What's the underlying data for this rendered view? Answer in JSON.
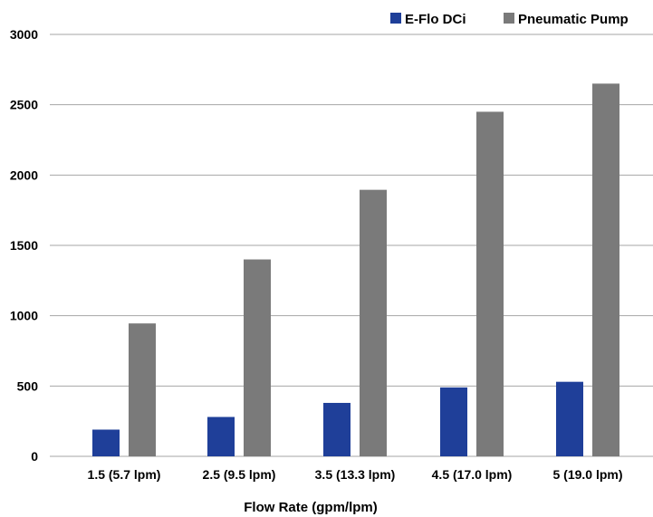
{
  "chart_data": {
    "type": "bar",
    "categories": [
      "1.5 (5.7 lpm)",
      "2.5 (9.5 lpm)",
      "3.5 (13.3 lpm)",
      "4.5 (17.0 lpm)",
      "5 (19.0 lpm)"
    ],
    "series": [
      {
        "name": "E-Flo DCi",
        "color": "#1f3f99",
        "values": [
          190,
          280,
          380,
          490,
          530
        ]
      },
      {
        "name": "Pneumatic Pump",
        "color": "#7a7a7a",
        "values": [
          945,
          1400,
          1895,
          2450,
          2650
        ]
      }
    ],
    "title": "",
    "xlabel": "Flow Rate (gpm/lpm)",
    "ylabel": "",
    "ylim": [
      0,
      3000
    ],
    "yticks": [
      0,
      500,
      1000,
      1500,
      2000,
      2500,
      3000
    ],
    "grid": true,
    "legend": "top-right"
  }
}
